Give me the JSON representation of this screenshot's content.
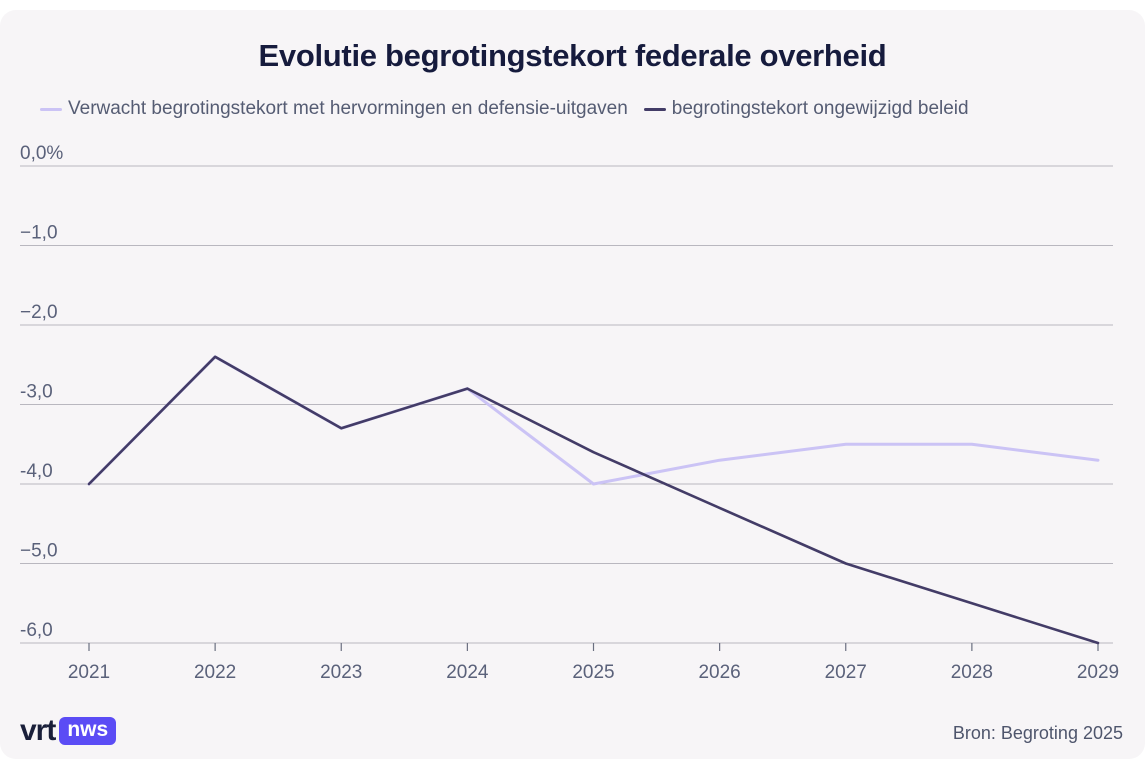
{
  "colors": {
    "background": "#f7f5f7",
    "title": "#161b3d",
    "series_light": "#cbc3f5",
    "series_dark": "#433c67",
    "grid": "#b9b7bf",
    "brand": "#5b4cf5"
  },
  "brand": {
    "vrt": "vrt",
    "nws": "nws"
  },
  "source": "Bron: Begroting 2025",
  "chart_data": {
    "type": "line",
    "title": "Evolutie begrotingstekort federale overheid",
    "xlabel": "",
    "ylabel": "",
    "categories": [
      "2021",
      "2022",
      "2023",
      "2024",
      "2025",
      "2026",
      "2027",
      "2028",
      "2029"
    ],
    "ylim": [
      -6,
      0
    ],
    "yticks": [
      0,
      -1,
      -2,
      -3,
      -4,
      -5,
      -6
    ],
    "ytick_labels": [
      "0,0%",
      "−1,0",
      "−2,0",
      "-3,0",
      "-4,0",
      "−5,0",
      "-6,0"
    ],
    "legend_position": "top-left",
    "series": [
      {
        "name": "Verwacht begrotingstekort met hervormingen en defensie-uitgaven",
        "color": "#cbc3f5",
        "values": [
          -4.0,
          -2.4,
          -3.3,
          -2.8,
          -4.0,
          -3.7,
          -3.5,
          -3.5,
          -3.7
        ]
      },
      {
        "name": "begrotingstekort ongewijzigd beleid",
        "color": "#433c67",
        "values": [
          -4.0,
          -2.4,
          -3.3,
          -2.8,
          -3.6,
          -4.3,
          -5.0,
          -5.5,
          -6.0
        ]
      }
    ]
  }
}
